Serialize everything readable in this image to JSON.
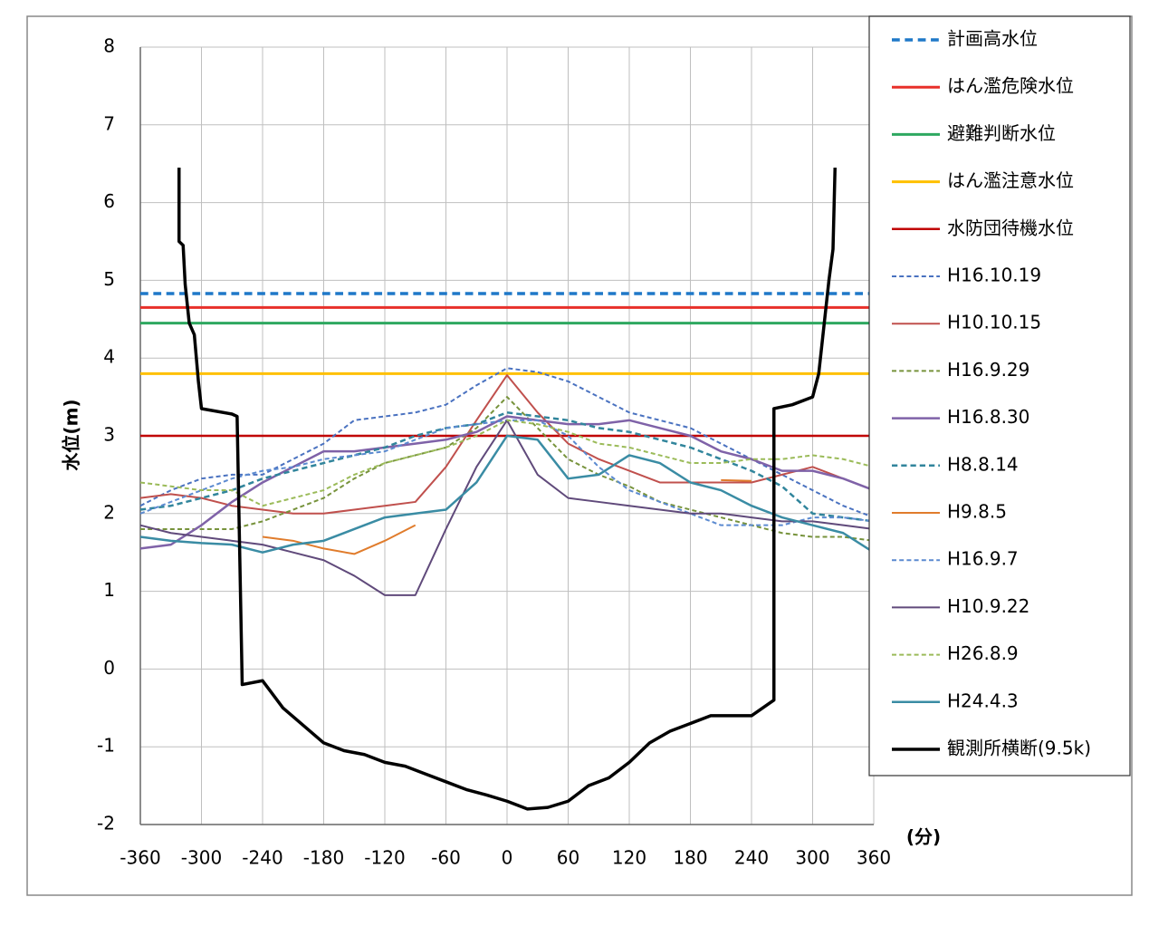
{
  "chart_data": {
    "type": "line",
    "y_label": "水位(m)",
    "x_label": "(分)",
    "xlim": [
      -360,
      360
    ],
    "xticks": [
      -360,
      -300,
      -240,
      -180,
      -120,
      -60,
      0,
      60,
      120,
      180,
      240,
      300,
      360
    ],
    "ylim": [
      -2,
      8
    ],
    "yticks": [
      -2,
      -1,
      0,
      1,
      2,
      3,
      4,
      5,
      6,
      7,
      8
    ],
    "grid": true,
    "legend": "right",
    "x": [
      -360,
      -330,
      -300,
      -270,
      -240,
      -210,
      -180,
      -150,
      -120,
      -90,
      -60,
      -30,
      0,
      30,
      60,
      90,
      120,
      150,
      180,
      210,
      240,
      270,
      300,
      330,
      360
    ],
    "series": [
      {
        "name": "計画高水位",
        "color": "#1f78c8",
        "dash": true,
        "width": 3.5,
        "x": [
          -360,
          360
        ],
        "values": [
          4.83,
          4.83
        ]
      },
      {
        "name": "はん濫危険水位",
        "color": "#e8302a",
        "dash": false,
        "width": 3,
        "x": [
          -360,
          360
        ],
        "values": [
          4.65,
          4.65
        ]
      },
      {
        "name": "避難判断水位",
        "color": "#2ea860",
        "dash": false,
        "width": 3,
        "x": [
          -360,
          360
        ],
        "values": [
          4.45,
          4.45
        ]
      },
      {
        "name": "はん濫注意水位",
        "color": "#ffc000",
        "dash": false,
        "width": 3,
        "x": [
          -360,
          360
        ],
        "values": [
          3.8,
          3.8
        ]
      },
      {
        "name": "水防団待機水位",
        "color": "#c00000",
        "dash": false,
        "width": 2.5,
        "x": [
          -360,
          360
        ],
        "values": [
          3.0,
          3.0
        ]
      },
      {
        "name": "H16.10.19",
        "color": "#4a72c0",
        "dash": true,
        "width": 2,
        "values": [
          2.1,
          2.3,
          2.45,
          2.5,
          2.5,
          2.7,
          2.9,
          3.2,
          3.25,
          3.3,
          3.4,
          3.65,
          3.87,
          3.82,
          3.7,
          3.5,
          3.3,
          3.2,
          3.1,
          2.9,
          2.7,
          2.5,
          2.3,
          2.1,
          1.95
        ]
      },
      {
        "name": "H10.10.15",
        "color": "#c0504d",
        "dash": false,
        "width": 2,
        "values": [
          2.2,
          2.25,
          2.2,
          2.1,
          2.05,
          2.0,
          2.0,
          2.05,
          2.1,
          2.15,
          2.6,
          3.2,
          3.78,
          3.3,
          2.9,
          2.7,
          2.55,
          2.4,
          2.4,
          2.4,
          2.4,
          2.5,
          2.6,
          2.45,
          2.3
        ]
      },
      {
        "name": "H16.9.29",
        "color": "#77933c",
        "dash": true,
        "width": 2,
        "values": [
          1.8,
          1.8,
          1.8,
          1.8,
          1.9,
          2.05,
          2.2,
          2.45,
          2.65,
          2.75,
          2.85,
          3.1,
          3.5,
          3.1,
          2.7,
          2.5,
          2.35,
          2.15,
          2.05,
          1.95,
          1.85,
          1.75,
          1.7,
          1.7,
          1.65
        ]
      },
      {
        "name": "H16.8.30",
        "color": "#7f62a8",
        "dash": false,
        "width": 2.5,
        "values": [
          1.55,
          1.6,
          1.85,
          2.15,
          2.4,
          2.6,
          2.8,
          2.8,
          2.85,
          2.9,
          2.95,
          3.05,
          3.25,
          3.2,
          3.15,
          3.15,
          3.2,
          3.1,
          3.0,
          2.8,
          2.7,
          2.55,
          2.55,
          2.45,
          2.3
        ]
      },
      {
        "name": "H8.8.14",
        "color": "#31859c",
        "dash": true,
        "width": 2.5,
        "values": [
          2.05,
          2.1,
          2.2,
          2.3,
          2.45,
          2.55,
          2.65,
          2.75,
          2.85,
          3.0,
          3.1,
          3.15,
          3.3,
          3.25,
          3.2,
          3.1,
          3.05,
          2.95,
          2.85,
          2.7,
          2.55,
          2.35,
          2.0,
          1.95,
          1.9
        ]
      },
      {
        "name": "H9.8.5",
        "color": "#e07c2c",
        "dash": false,
        "width": 2,
        "values": [
          null,
          null,
          null,
          null,
          1.7,
          1.65,
          1.55,
          1.48,
          1.65,
          1.85,
          null,
          null,
          null,
          null,
          null,
          null,
          null,
          null,
          null,
          2.43,
          2.42,
          null,
          null,
          null,
          null
        ]
      },
      {
        "name": "H16.9.7",
        "color": "#5b8ad0",
        "dash": true,
        "width": 2,
        "values": [
          2.0,
          2.15,
          2.3,
          2.45,
          2.55,
          2.6,
          2.7,
          2.75,
          2.8,
          2.95,
          3.1,
          3.15,
          3.2,
          3.2,
          3.0,
          2.6,
          2.3,
          2.15,
          2.0,
          1.85,
          1.85,
          1.85,
          1.95,
          1.95,
          1.9
        ]
      },
      {
        "name": "H10.9.22",
        "color": "#604a7b",
        "dash": false,
        "width": 2,
        "values": [
          1.85,
          1.75,
          1.7,
          1.65,
          1.6,
          1.5,
          1.4,
          1.2,
          0.95,
          0.95,
          1.8,
          2.6,
          3.2,
          2.5,
          2.2,
          2.15,
          2.1,
          2.05,
          2.0,
          2.0,
          1.95,
          1.9,
          1.9,
          1.85,
          1.8
        ]
      },
      {
        "name": "H26.8.9",
        "color": "#9bbb59",
        "dash": true,
        "width": 2,
        "values": [
          2.4,
          2.35,
          2.3,
          2.3,
          2.1,
          2.2,
          2.3,
          2.5,
          2.65,
          2.75,
          2.85,
          3.0,
          3.2,
          3.15,
          3.05,
          2.9,
          2.85,
          2.75,
          2.65,
          2.65,
          2.7,
          2.7,
          2.75,
          2.7,
          2.6
        ]
      },
      {
        "name": "H24.4.3",
        "color": "#3a8ca4",
        "dash": false,
        "width": 2.5,
        "values": [
          1.7,
          1.65,
          1.62,
          1.6,
          1.5,
          1.6,
          1.65,
          1.8,
          1.95,
          2.0,
          2.05,
          2.4,
          3.0,
          2.95,
          2.45,
          2.5,
          2.75,
          2.65,
          2.4,
          2.3,
          2.1,
          1.95,
          1.85,
          1.75,
          1.5
        ]
      },
      {
        "name": "観測所横断(9.5k)",
        "color": "#000000",
        "dash": false,
        "width": 3.5,
        "x": [
          -322,
          -322,
          -318,
          -316,
          -312,
          -307,
          -303,
          -300,
          -270,
          -265,
          -260,
          -240,
          -220,
          -180,
          -160,
          -140,
          -120,
          -100,
          -80,
          -60,
          -40,
          -20,
          0,
          20,
          40,
          60,
          80,
          100,
          120,
          140,
          160,
          180,
          200,
          240,
          262,
          262,
          280,
          300,
          306,
          316,
          320,
          322
        ],
        "values": [
          6.45,
          5.5,
          5.45,
          4.95,
          4.45,
          4.3,
          3.7,
          3.35,
          3.28,
          3.25,
          -0.2,
          -0.15,
          -0.5,
          -0.95,
          -1.05,
          -1.1,
          -1.2,
          -1.25,
          -1.35,
          -1.45,
          -1.55,
          -1.62,
          -1.7,
          -1.8,
          -1.78,
          -1.7,
          -1.5,
          -1.4,
          -1.2,
          -0.95,
          -0.8,
          -0.7,
          -0.6,
          -0.6,
          -0.4,
          3.35,
          3.4,
          3.5,
          3.8,
          5.0,
          5.4,
          6.45
        ]
      }
    ]
  }
}
